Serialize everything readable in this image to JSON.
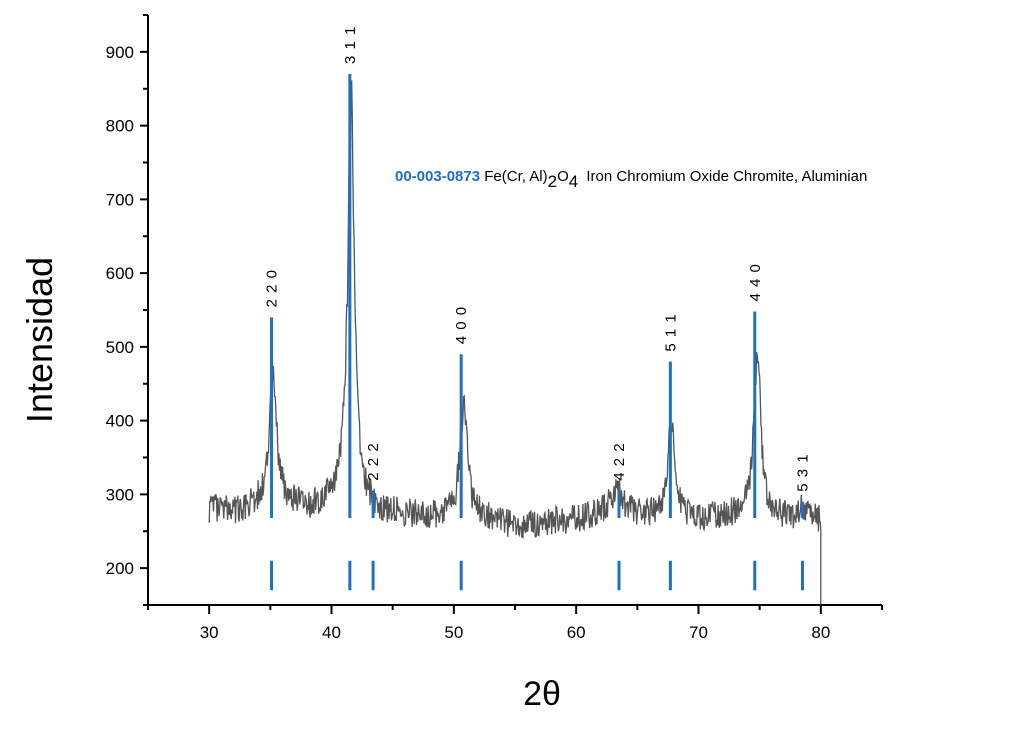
{
  "chart_data": {
    "type": "line",
    "xlabel": "2θ",
    "ylabel": "Intensidad",
    "xlim": [
      25,
      85
    ],
    "ylim": [
      150,
      950
    ],
    "xticks": [
      30,
      40,
      50,
      60,
      70,
      80
    ],
    "yticks": [
      200,
      300,
      400,
      500,
      600,
      700,
      800,
      900
    ],
    "grid": false,
    "legend": {
      "code": "00-003-0873",
      "formula_main": "Fe(Cr, Al)",
      "formula_sub1": "2",
      "formula_o": "O",
      "formula_sub2": "4",
      "description": "Iron Chromium Oxide Chromite, Aluminian",
      "placement": "top-right"
    },
    "colors": {
      "pattern": "#555555",
      "reference": "#1f6fc6",
      "legend_code": "#1f6fc6"
    },
    "background": {
      "x": [
        30,
        32,
        34,
        36,
        38,
        40,
        44,
        48,
        52,
        55,
        58,
        61,
        63,
        66,
        70,
        73,
        77,
        80
      ],
      "y": [
        280,
        275,
        285,
        290,
        278,
        285,
        272,
        270,
        268,
        258,
        262,
        270,
        285,
        270,
        268,
        270,
        268,
        265
      ]
    },
    "observed_peaks": [
      {
        "x": 35.2,
        "height": 475
      },
      {
        "x": 41.6,
        "height": 870
      },
      {
        "x": 50.8,
        "height": 440
      },
      {
        "x": 63.4,
        "height": 305
      },
      {
        "x": 67.8,
        "height": 405
      },
      {
        "x": 74.8,
        "height": 510
      },
      {
        "x": 78.5,
        "height": 285
      }
    ],
    "reference_peaks": [
      {
        "hkl": "2 2 0",
        "x": 35.1,
        "y": 540
      },
      {
        "hkl": "3 1 1",
        "x": 41.5,
        "y": 870
      },
      {
        "hkl": "2 2 2",
        "x": 43.4,
        "y": 305
      },
      {
        "hkl": "4 0 0",
        "x": 50.6,
        "y": 490
      },
      {
        "hkl": "4 2 2",
        "x": 63.5,
        "y": 305
      },
      {
        "hkl": "5 1 1",
        "x": 67.7,
        "y": 480
      },
      {
        "hkl": "4 4 0",
        "x": 74.6,
        "y": 548
      },
      {
        "hkl": "5 3 1",
        "x": 78.5,
        "y": 290
      }
    ],
    "reference_sticks_range": [
      170,
      210
    ]
  }
}
